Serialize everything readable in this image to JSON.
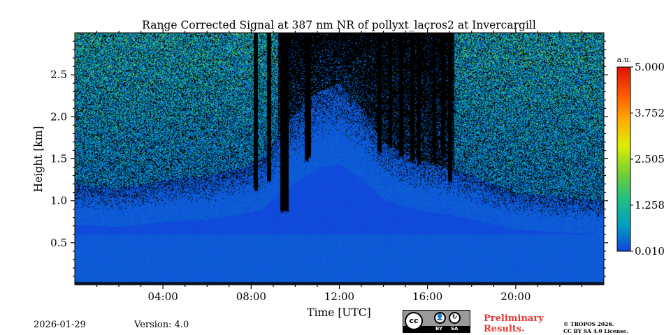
{
  "chart_data": {
    "type": "heatmap",
    "title": "Range Corrected Signal at 387 nm NR of pollyxt_lacros2 at Invercargill",
    "xlabel": "Time [UTC]",
    "ylabel": "Height [km]",
    "x_unit": "hours UTC",
    "xlim": [
      0,
      24
    ],
    "ylim": [
      0,
      3.0
    ],
    "x_ticks": [
      4,
      8,
      12,
      16,
      20
    ],
    "x_tick_labels": [
      "04:00",
      "08:00",
      "12:00",
      "16:00",
      "20:00"
    ],
    "y_ticks": [
      0.5,
      1.0,
      1.5,
      2.0,
      2.5
    ],
    "y_tick_labels": [
      "0.5",
      "1.0",
      "1.5",
      "2.0",
      "2.5"
    ],
    "colorbar": {
      "label": "a.u.",
      "range": [
        0.01,
        5.0
      ],
      "tick_values": [
        0.01,
        1.258,
        2.505,
        3.752,
        5.0
      ],
      "tick_labels": [
        "0.010",
        "1.258",
        "2.505",
        "3.752",
        "5.000"
      ],
      "colors": [
        "#1144dd",
        "#00a0c0",
        "#22c080",
        "#77d030",
        "#ddee00",
        "#ffaa00",
        "#ff5500",
        "#dd1100"
      ]
    },
    "no_signal_color": "#000000",
    "blue_base_color": "#1a5ee0",
    "noise_top_km": 3.0,
    "noise_transition_km_by_hour": [
      [
        0,
        1.2
      ],
      [
        2,
        1.15
      ],
      [
        4,
        1.25
      ],
      [
        6,
        1.3
      ],
      [
        7.5,
        1.4
      ],
      [
        8.5,
        1.5
      ],
      [
        9.5,
        1.9
      ],
      [
        11,
        2.3
      ],
      [
        12,
        2.4
      ],
      [
        13,
        2.1
      ],
      [
        14,
        1.7
      ],
      [
        15,
        1.55
      ],
      [
        16,
        1.45
      ],
      [
        17,
        1.4
      ],
      [
        18,
        1.3
      ],
      [
        20,
        1.1
      ],
      [
        22,
        1.05
      ],
      [
        24,
        1.0
      ]
    ],
    "daytime_dark_band_hours": [
      [
        9.2,
        17.2
      ]
    ],
    "dark_column_bottoms_km": [
      [
        9.4,
        0.85
      ],
      [
        9.6,
        0.85
      ],
      [
        10.5,
        1.45
      ],
      [
        10.6,
        1.5
      ],
      [
        13.8,
        1.55
      ],
      [
        14.3,
        1.6
      ],
      [
        14.8,
        1.5
      ],
      [
        15.3,
        1.45
      ],
      [
        15.6,
        1.4
      ],
      [
        16.3,
        1.45
      ],
      [
        16.7,
        1.5
      ],
      [
        17.0,
        1.2
      ],
      [
        8.2,
        1.1
      ],
      [
        8.8,
        1.2
      ]
    ]
  },
  "footer": {
    "date": "2026-01-29",
    "version": "Version: 4.0",
    "license_badge": {
      "by": "BY",
      "sa": "SA",
      "cc": "cc"
    },
    "preliminary": "Preliminary Results.",
    "copyright_line1": "© TROPOS 2026.",
    "copyright_line2": "CC BY SA 4.0 License."
  }
}
